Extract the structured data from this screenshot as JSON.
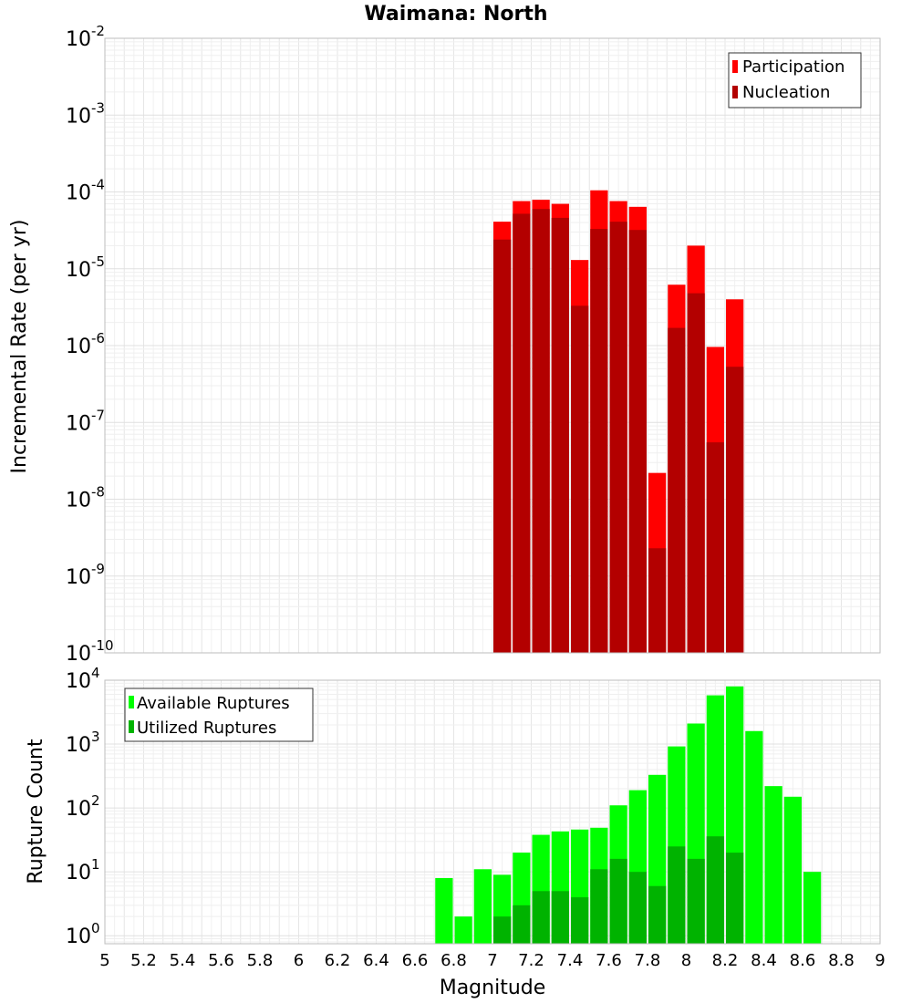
{
  "chart_data": [
    {
      "type": "bar",
      "title": "Waimana: North",
      "xlabel": "",
      "ylabel": "Incremental Rate (per yr)",
      "yscale": "log",
      "xlim": [
        5,
        9
      ],
      "ylim": [
        1e-10,
        0.01
      ],
      "y_ticks": [
        {
          "base": "10",
          "exp": "-10",
          "value": 1e-10
        },
        {
          "base": "10",
          "exp": "-9",
          "value": 1e-09
        },
        {
          "base": "10",
          "exp": "-8",
          "value": 1e-08
        },
        {
          "base": "10",
          "exp": "-7",
          "value": 1e-07
        },
        {
          "base": "10",
          "exp": "-6",
          "value": 1e-06
        },
        {
          "base": "10",
          "exp": "-5",
          "value": 1e-05
        },
        {
          "base": "10",
          "exp": "-4",
          "value": 0.0001
        },
        {
          "base": "10",
          "exp": "-3",
          "value": 0.001
        },
        {
          "base": "10",
          "exp": "-2",
          "value": 0.01
        }
      ],
      "grid": true,
      "legend_position": "top-right",
      "bin_width": 0.1,
      "x": [
        7.05,
        7.15,
        7.25,
        7.35,
        7.45,
        7.55,
        7.65,
        7.75,
        7.85,
        7.95,
        8.05,
        8.15,
        8.25
      ],
      "series": [
        {
          "name": "Participation",
          "color": "#ff0000",
          "values": [
            4.1e-05,
            7.6e-05,
            7.9e-05,
            7e-05,
            1.3e-05,
            0.000105,
            7.6e-05,
            6.4e-05,
            2.2e-08,
            6.2e-06,
            2e-05,
            9.6e-07,
            4e-06
          ]
        },
        {
          "name": "Nucleation",
          "color": "#b30000",
          "values": [
            2.4e-05,
            5.2e-05,
            6e-05,
            4.6e-05,
            3.3e-06,
            3.3e-05,
            4.1e-05,
            3.2e-05,
            2.3e-09,
            1.7e-06,
            4.8e-06,
            5.5e-08,
            5.3e-07
          ]
        }
      ]
    },
    {
      "type": "bar",
      "title": "",
      "xlabel": "Magnitude",
      "ylabel": "Rupture Count",
      "yscale": "log",
      "xlim": [
        5,
        9
      ],
      "ylim": [
        0.75,
        10000
      ],
      "y_ticks": [
        {
          "base": "10",
          "exp": "0",
          "value": 1
        },
        {
          "base": "10",
          "exp": "1",
          "value": 10
        },
        {
          "base": "10",
          "exp": "2",
          "value": 100
        },
        {
          "base": "10",
          "exp": "3",
          "value": 1000
        },
        {
          "base": "10",
          "exp": "4",
          "value": 10000
        }
      ],
      "x_ticks": [
        "5",
        "5.2",
        "5.4",
        "5.6",
        "5.8",
        "6",
        "6.2",
        "6.4",
        "6.6",
        "6.8",
        "7",
        "7.2",
        "7.4",
        "7.6",
        "7.8",
        "8",
        "8.2",
        "8.4",
        "8.6",
        "8.8",
        "9"
      ],
      "grid": true,
      "legend_position": "top-left",
      "bin_width": 0.1,
      "x": [
        6.75,
        6.85,
        6.95,
        7.05,
        7.15,
        7.25,
        7.35,
        7.45,
        7.55,
        7.65,
        7.75,
        7.85,
        7.95,
        8.05,
        8.15,
        8.25,
        8.35,
        8.45,
        8.55,
        8.65
      ],
      "series": [
        {
          "name": "Available Ruptures",
          "color": "#00ff00",
          "values": [
            8,
            2,
            11,
            9,
            20,
            38,
            43,
            46,
            49,
            110,
            190,
            330,
            920,
            2100,
            5800,
            8000,
            1600,
            220,
            150,
            10
          ]
        },
        {
          "name": "Utilized Ruptures",
          "color": "#00b300",
          "values": [
            null,
            null,
            null,
            2,
            3,
            5,
            5,
            4,
            11,
            16,
            10,
            6,
            25,
            16,
            36,
            20,
            null,
            null,
            null,
            null
          ]
        }
      ]
    }
  ]
}
